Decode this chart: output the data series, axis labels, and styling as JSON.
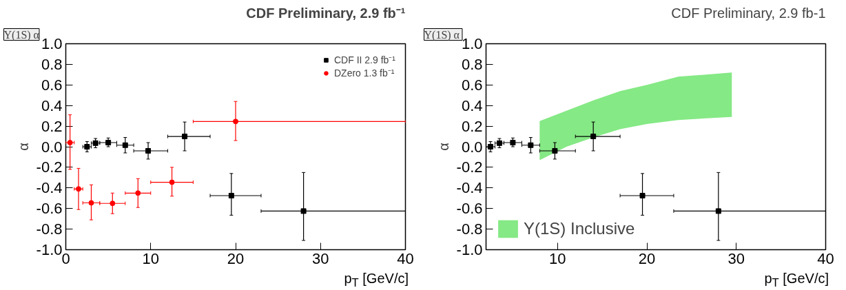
{
  "chart_data": [
    {
      "type": "scatter",
      "title": "CDF Preliminary, 2.9 fb⁻¹",
      "xlabel": "p$_{T}$ [GeV/c]",
      "ylabel": "α",
      "annotations": [
        "Υ(1S) α"
      ],
      "xlim": [
        0,
        40
      ],
      "xticks": [
        0,
        10,
        20,
        30,
        40
      ],
      "ylim": [
        -1,
        1
      ],
      "yticks": [
        {
          "value": -1,
          "label": "-1.0"
        },
        {
          "value": -0.8,
          "label": "-0.8"
        },
        {
          "value": -0.6,
          "label": "-0.6"
        },
        {
          "value": -0.4,
          "label": "-0.4"
        },
        {
          "value": -0.2,
          "label": "-0.2"
        },
        {
          "value": 0,
          "label": "0.0"
        },
        {
          "value": 0.2,
          "label": "0.2"
        },
        {
          "value": 0.4,
          "label": "0.4"
        },
        {
          "value": 0.6,
          "label": "0.6"
        },
        {
          "value": 0.8,
          "label": "0.8"
        },
        {
          "value": 1,
          "label": "1.0"
        }
      ],
      "grid": false,
      "legend": "top right",
      "series": [
        {
          "name": "CDF II 2.9 fb⁻¹",
          "color": "#000000",
          "marker": "square",
          "x": [
            2.5,
            3.5,
            5,
            7,
            9.7,
            14,
            19.5,
            28
          ],
          "values": [
            0.0,
            0.035,
            0.04,
            0.015,
            -0.04,
            0.1,
            -0.475,
            -0.625
          ],
          "errors": [
            [
              -0.05,
              0.05
            ],
            [
              -0.01,
              0.08
            ],
            [
              0.0,
              0.085
            ],
            [
              -0.06,
              0.09
            ],
            [
              -0.12,
              0.04
            ],
            [
              -0.04,
              0.24
            ],
            [
              -0.665,
              -0.26
            ],
            [
              -0.91,
              -0.25
            ]
          ],
          "xerrors": [
            [
              2,
              3
            ],
            [
              3,
              4
            ],
            [
              4,
              6
            ],
            [
              6,
              8
            ],
            [
              8,
              12
            ],
            [
              12,
              17
            ],
            [
              17,
              23
            ],
            [
              23,
              40
            ]
          ]
        },
        {
          "name": "DZero 1.3 fb⁻¹",
          "color": "#ff0000",
          "marker": "circle",
          "x": [
            0.5,
            1.5,
            3,
            5.5,
            8.5,
            12.5,
            20
          ],
          "values": [
            0.04,
            -0.41,
            -0.545,
            -0.55,
            -0.45,
            -0.345,
            0.245
          ],
          "errors": [
            [
              -0.22,
              0.31
            ],
            [
              -0.61,
              -0.21
            ],
            [
              -0.71,
              -0.37
            ],
            [
              -0.65,
              -0.45
            ],
            [
              -0.59,
              -0.31
            ],
            [
              -0.48,
              -0.2
            ],
            [
              0.06,
              0.44
            ]
          ],
          "xerrors": [
            [
              0,
              1
            ],
            [
              1,
              2
            ],
            [
              2,
              4
            ],
            [
              4,
              7
            ],
            [
              7,
              10
            ],
            [
              10,
              15
            ],
            [
              15,
              40
            ]
          ]
        }
      ]
    },
    {
      "type": "scatter",
      "title": "CDF Preliminary, 2.9 fb-1",
      "xlabel": "p$_{T}$ [GeV/c]",
      "ylabel": "α",
      "annotations": [
        "Υ(1S)  α"
      ],
      "xlim": [
        2,
        40
      ],
      "xticks": [
        10,
        20,
        30,
        40
      ],
      "ylim": [
        -1,
        1
      ],
      "yticks": [
        {
          "value": -1,
          "label": "-1.0"
        },
        {
          "value": -0.8,
          "label": "-0.8"
        },
        {
          "value": -0.6,
          "label": "-0.6"
        },
        {
          "value": -0.4,
          "label": "-0.4"
        },
        {
          "value": -0.2,
          "label": "-0.2"
        },
        {
          "value": 0,
          "label": "0.0"
        },
        {
          "value": 0.2,
          "label": "0.2"
        },
        {
          "value": 0.4,
          "label": "0.4"
        },
        {
          "value": 0.6,
          "label": "0.6"
        },
        {
          "value": 0.8,
          "label": "0.8"
        },
        {
          "value": 1,
          "label": "1.0"
        }
      ],
      "grid": false,
      "legend": "bottom left",
      "series": [
        {
          "name": "Υ(1S) Inclusive",
          "type": "area",
          "color": "#85e985",
          "x": [
            8,
            11,
            14,
            17,
            20,
            23.5,
            29.5
          ],
          "values": [
            null,
            null,
            null,
            null,
            null,
            null,
            null
          ],
          "upper": [
            0.25,
            0.35,
            0.45,
            0.54,
            0.6,
            0.68,
            0.72
          ],
          "lower": [
            -0.13,
            0.0,
            0.09,
            0.17,
            0.22,
            0.26,
            0.29
          ]
        },
        {
          "color": "#000000",
          "marker": "square",
          "x": [
            2.5,
            3.5,
            5,
            7,
            9.7,
            14,
            19.5,
            28
          ],
          "values": [
            0.0,
            0.035,
            0.04,
            0.015,
            -0.04,
            0.1,
            -0.475,
            -0.625
          ],
          "errors": [
            [
              -0.05,
              0.05
            ],
            [
              -0.01,
              0.08
            ],
            [
              0.0,
              0.085
            ],
            [
              -0.06,
              0.09
            ],
            [
              -0.12,
              0.04
            ],
            [
              -0.04,
              0.24
            ],
            [
              -0.665,
              -0.26
            ],
            [
              -0.91,
              -0.25
            ]
          ],
          "xerrors": [
            [
              2,
              3
            ],
            [
              3,
              4
            ],
            [
              4,
              6
            ],
            [
              6,
              8
            ],
            [
              8,
              12
            ],
            [
              12,
              17
            ],
            [
              17,
              23
            ],
            [
              23,
              40
            ]
          ]
        }
      ]
    }
  ]
}
